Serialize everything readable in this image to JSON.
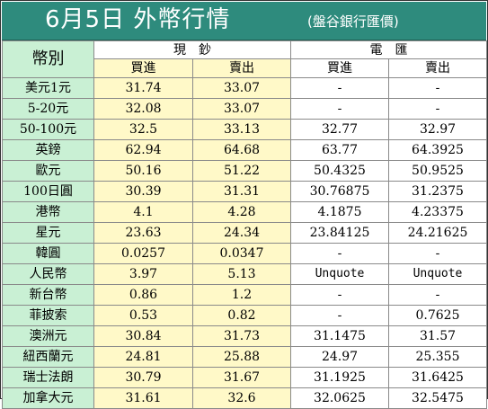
{
  "title": {
    "main": "6月5日 外幣行情",
    "source": "(盤谷銀行匯價)"
  },
  "headers": {
    "currency": "幣別",
    "cash": "現　鈔",
    "telegraphic": "電　匯",
    "buy": "買進",
    "sell": "賣出"
  },
  "colors": {
    "title_bg": "#2e8b7d",
    "name_col_bg": "#c9f0d4",
    "cash_col_bg": "#fff9c8",
    "tt_col_bg": "#ffffff"
  },
  "rows": [
    {
      "currency": "美元1元",
      "cash_buy": "31.74",
      "cash_sell": "33.07",
      "tt_buy": "-",
      "tt_sell": "-"
    },
    {
      "currency": "5-20元",
      "cash_buy": "32.08",
      "cash_sell": "33.07",
      "tt_buy": "-",
      "tt_sell": "-"
    },
    {
      "currency": "50-100元",
      "cash_buy": "32.5",
      "cash_sell": "33.13",
      "tt_buy": "32.77",
      "tt_sell": "32.97"
    },
    {
      "currency": "英鎊",
      "cash_buy": "62.94",
      "cash_sell": "64.68",
      "tt_buy": "63.77",
      "tt_sell": "64.3925"
    },
    {
      "currency": "歐元",
      "cash_buy": "50.16",
      "cash_sell": "51.22",
      "tt_buy": "50.4325",
      "tt_sell": "50.9525"
    },
    {
      "currency": "100日圓",
      "cash_buy": "30.39",
      "cash_sell": "31.31",
      "tt_buy": "30.76875",
      "tt_sell": "31.2375"
    },
    {
      "currency": "港幣",
      "cash_buy": "4.1",
      "cash_sell": "4.28",
      "tt_buy": "4.1875",
      "tt_sell": "4.23375"
    },
    {
      "currency": "星元",
      "cash_buy": "23.63",
      "cash_sell": "24.34",
      "tt_buy": "23.84125",
      "tt_sell": "24.21625"
    },
    {
      "currency": "韓圓",
      "cash_buy": "0.0257",
      "cash_sell": "0.0347",
      "tt_buy": "-",
      "tt_sell": "-"
    },
    {
      "currency": "人民幣",
      "cash_buy": "3.97",
      "cash_sell": "5.13",
      "tt_buy": "Unquote",
      "tt_sell": "Unquote"
    },
    {
      "currency": "新台幣",
      "cash_buy": "0.86",
      "cash_sell": "1.2",
      "tt_buy": "-",
      "tt_sell": "-"
    },
    {
      "currency": "菲披索",
      "cash_buy": "0.53",
      "cash_sell": "0.82",
      "tt_buy": "-",
      "tt_sell": "0.7625"
    },
    {
      "currency": "澳洲元",
      "cash_buy": "30.84",
      "cash_sell": "31.73",
      "tt_buy": "31.1475",
      "tt_sell": "31.57"
    },
    {
      "currency": "紐西蘭元",
      "cash_buy": "24.81",
      "cash_sell": "25.88",
      "tt_buy": "24.97",
      "tt_sell": "25.355"
    },
    {
      "currency": "瑞士法朗",
      "cash_buy": "30.79",
      "cash_sell": "31.67",
      "tt_buy": "31.1925",
      "tt_sell": "31.6425"
    },
    {
      "currency": "加拿大元",
      "cash_buy": "31.61",
      "cash_sell": "32.6",
      "tt_buy": "32.0625",
      "tt_sell": "32.5475"
    }
  ]
}
